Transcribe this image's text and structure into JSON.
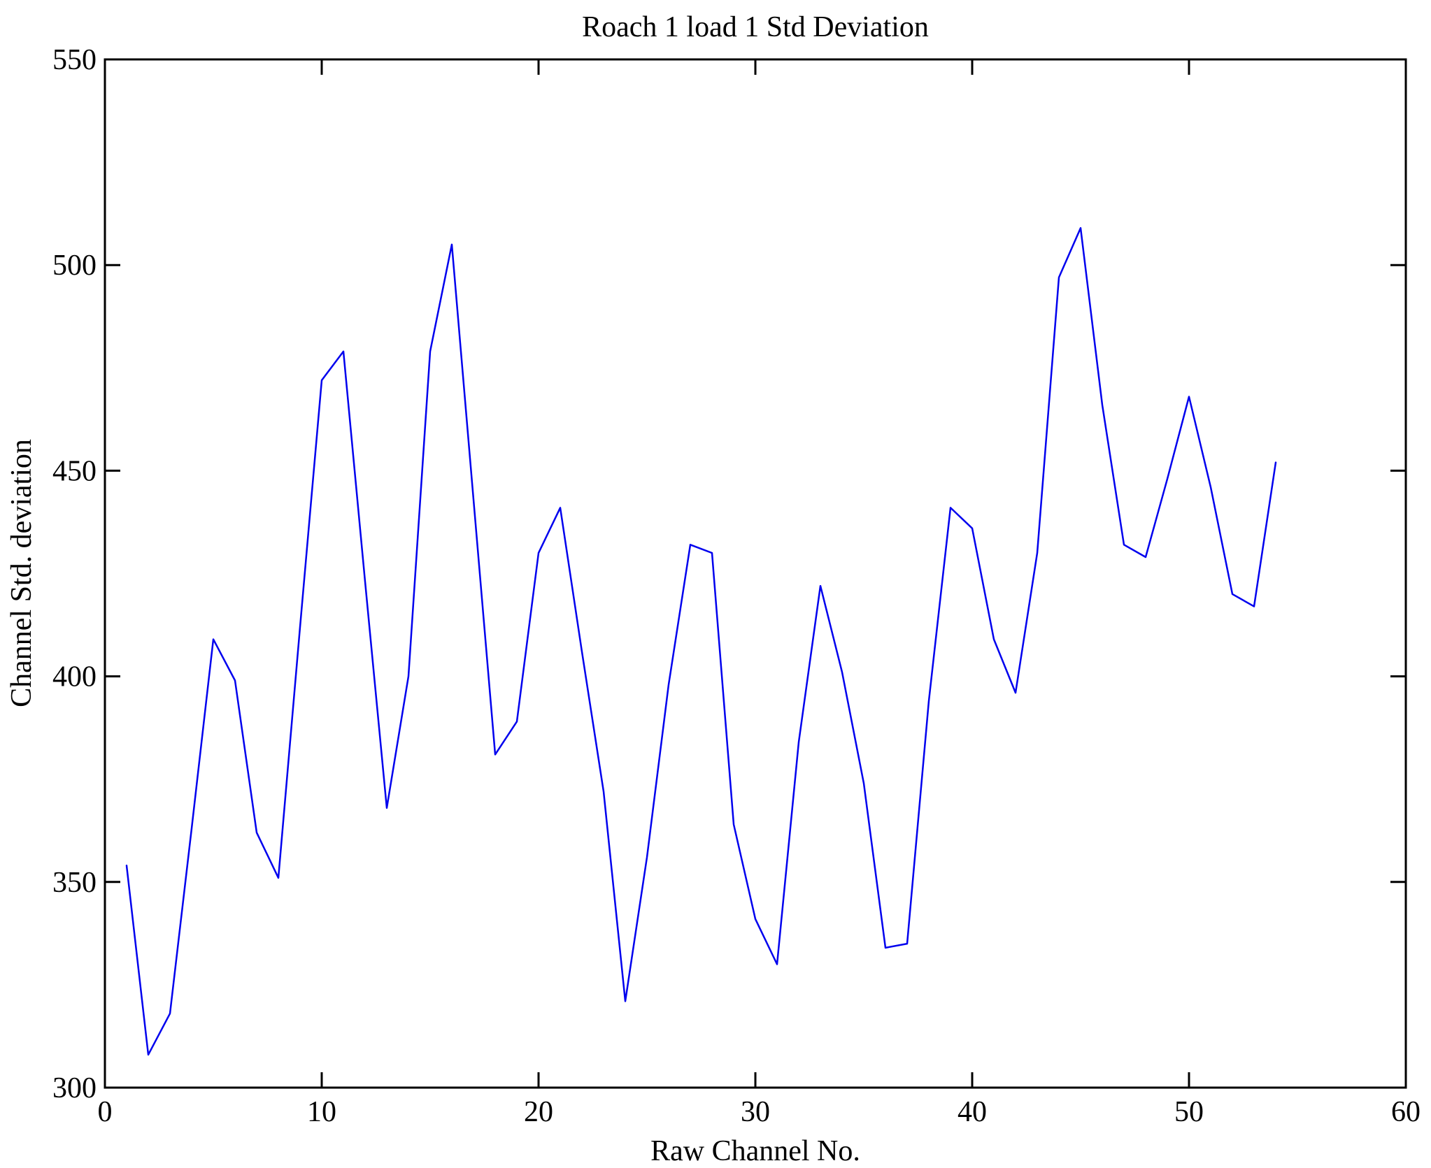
{
  "figure": {
    "background_color": "#ffffff",
    "axes_color": "#000000"
  },
  "chart_data": {
    "type": "line",
    "title": "Roach 1 load 1 Std Deviation",
    "xlabel": "Raw Channel No.",
    "ylabel": "Channel Std. deviation",
    "xlim": [
      0,
      60
    ],
    "ylim": [
      300,
      550
    ],
    "xticks": [
      0,
      10,
      20,
      30,
      40,
      50,
      60
    ],
    "yticks": [
      300,
      350,
      400,
      450,
      500,
      550
    ],
    "grid": false,
    "legend": "none",
    "line_color": "#0000EE",
    "series": [
      {
        "name": "channel-std-deviation",
        "x": [
          1,
          2,
          3,
          4,
          5,
          6,
          7,
          8,
          9,
          10,
          11,
          12,
          13,
          14,
          15,
          16,
          17,
          18,
          19,
          20,
          21,
          22,
          23,
          24,
          25,
          26,
          27,
          28,
          29,
          30,
          31,
          32,
          33,
          34,
          35,
          36,
          37,
          38,
          39,
          40,
          41,
          42,
          43,
          44,
          45,
          46,
          47,
          48,
          49,
          50,
          51,
          52,
          53,
          54
        ],
        "y": [
          354,
          308,
          318,
          363,
          409,
          399,
          362,
          351,
          412,
          472,
          479,
          423,
          368,
          400,
          479,
          505,
          443,
          381,
          389,
          430,
          441,
          406,
          372,
          321,
          356,
          398,
          432,
          430,
          364,
          341,
          330,
          384,
          422,
          401,
          374,
          334,
          335,
          394,
          441,
          436,
          409,
          396,
          430,
          497,
          509,
          466,
          432,
          429,
          448,
          468,
          446,
          420,
          417,
          452
        ]
      }
    ]
  }
}
